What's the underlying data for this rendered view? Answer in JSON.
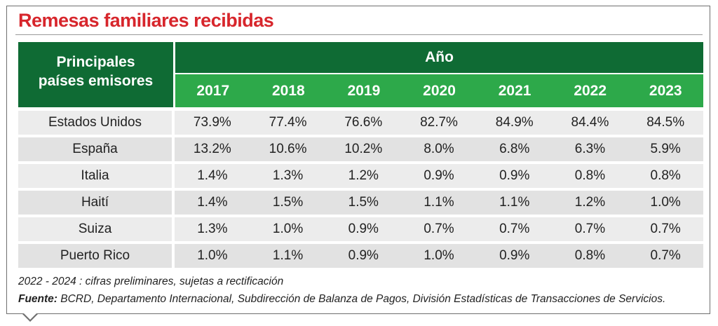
{
  "title": "Remesas familiares recibidas",
  "header": {
    "col_label_line1": "Principales",
    "col_label_line2": "países emisores",
    "group_label": "Año",
    "years": [
      "2017",
      "2018",
      "2019",
      "2020",
      "2021",
      "2022",
      "2023"
    ]
  },
  "rows": [
    {
      "country": "Estados Unidos",
      "values": [
        "73.9%",
        "77.4%",
        "76.6%",
        "82.7%",
        "84.9%",
        "84.4%",
        "84.5%"
      ]
    },
    {
      "country": "España",
      "values": [
        "13.2%",
        "10.6%",
        "10.2%",
        "8.0%",
        "6.8%",
        "6.3%",
        "5.9%"
      ]
    },
    {
      "country": "Italia",
      "values": [
        "1.4%",
        "1.3%",
        "1.2%",
        "0.9%",
        "0.9%",
        "0.8%",
        "0.8%"
      ]
    },
    {
      "country": "Haití",
      "values": [
        "1.4%",
        "1.5%",
        "1.5%",
        "1.1%",
        "1.1%",
        "1.2%",
        "1.0%"
      ]
    },
    {
      "country": "Suiza",
      "values": [
        "1.3%",
        "1.0%",
        "0.9%",
        "0.7%",
        "0.7%",
        "0.7%",
        "0.7%"
      ]
    },
    {
      "country": "Puerto Rico",
      "values": [
        "1.0%",
        "1.1%",
        "0.9%",
        "1.0%",
        "0.9%",
        "0.8%",
        "0.7%"
      ]
    }
  ],
  "note": "2022 - 2024 : cifras preliminares, sujetas a rectificación",
  "source_label": "Fuente:",
  "source_text": " BCRD, Departamento Internacional, Subdirección de Balanza de Pagos, División Estadísticas de Transacciones de Servicios.",
  "colors": {
    "title": "#d7262c",
    "header_dark": "#0f6b34",
    "header_light": "#2da94a",
    "row_bg": "#ececec"
  }
}
